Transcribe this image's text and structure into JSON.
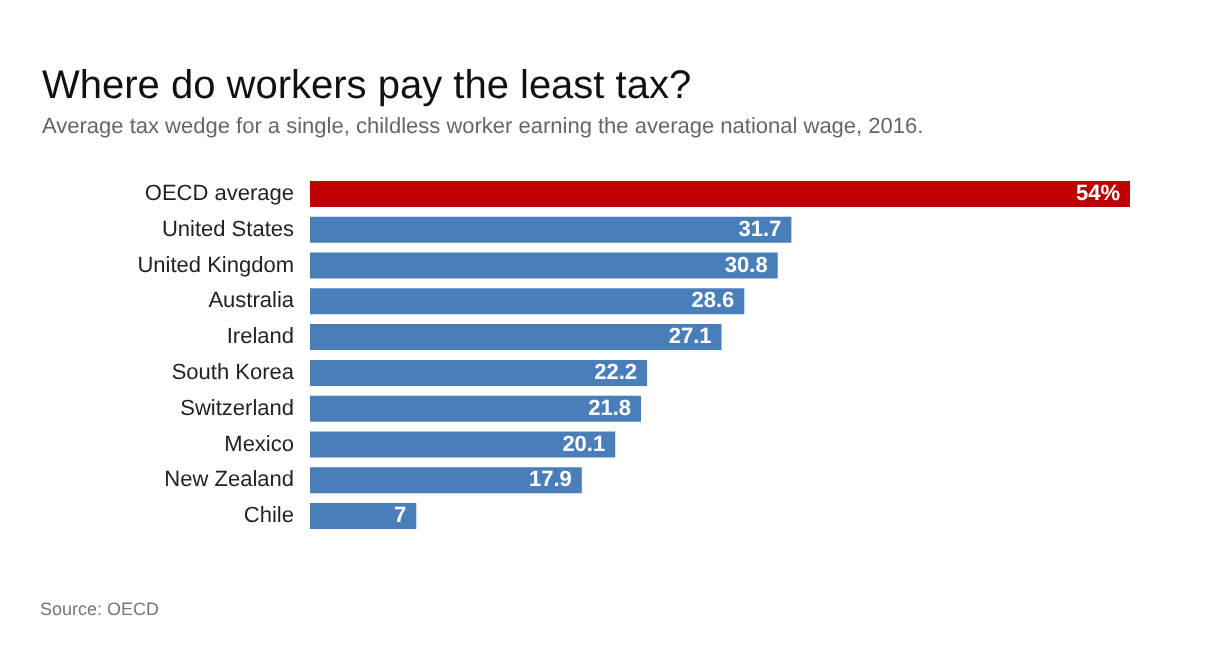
{
  "chart_data": {
    "type": "bar",
    "orientation": "horizontal",
    "title": "Where do workers pay the least tax?",
    "subtitle": "Average tax wedge for a single, childless worker earning the average national wage, 2016.",
    "categories": [
      "OECD average",
      "United States",
      "United Kingdom",
      "Australia",
      "Ireland",
      "South Korea",
      "Switzerland",
      "Mexico",
      "New Zealand",
      "Chile"
    ],
    "values": [
      54,
      31.7,
      30.8,
      28.6,
      27.1,
      22.2,
      21.8,
      20.1,
      17.9,
      7
    ],
    "colors": [
      "#c00000",
      "#4a7ebb",
      "#4a7ebb",
      "#4a7ebb",
      "#4a7ebb",
      "#4a7ebb",
      "#4a7ebb",
      "#4a7ebb",
      "#4a7ebb",
      "#4a7ebb"
    ],
    "value_labels": [
      "54%",
      "31.7",
      "30.8",
      "28.6",
      "27.1",
      "22.2",
      "21.8",
      "20.1",
      "17.9",
      "7"
    ],
    "annotations": [
      "Source: OECD"
    ]
  }
}
